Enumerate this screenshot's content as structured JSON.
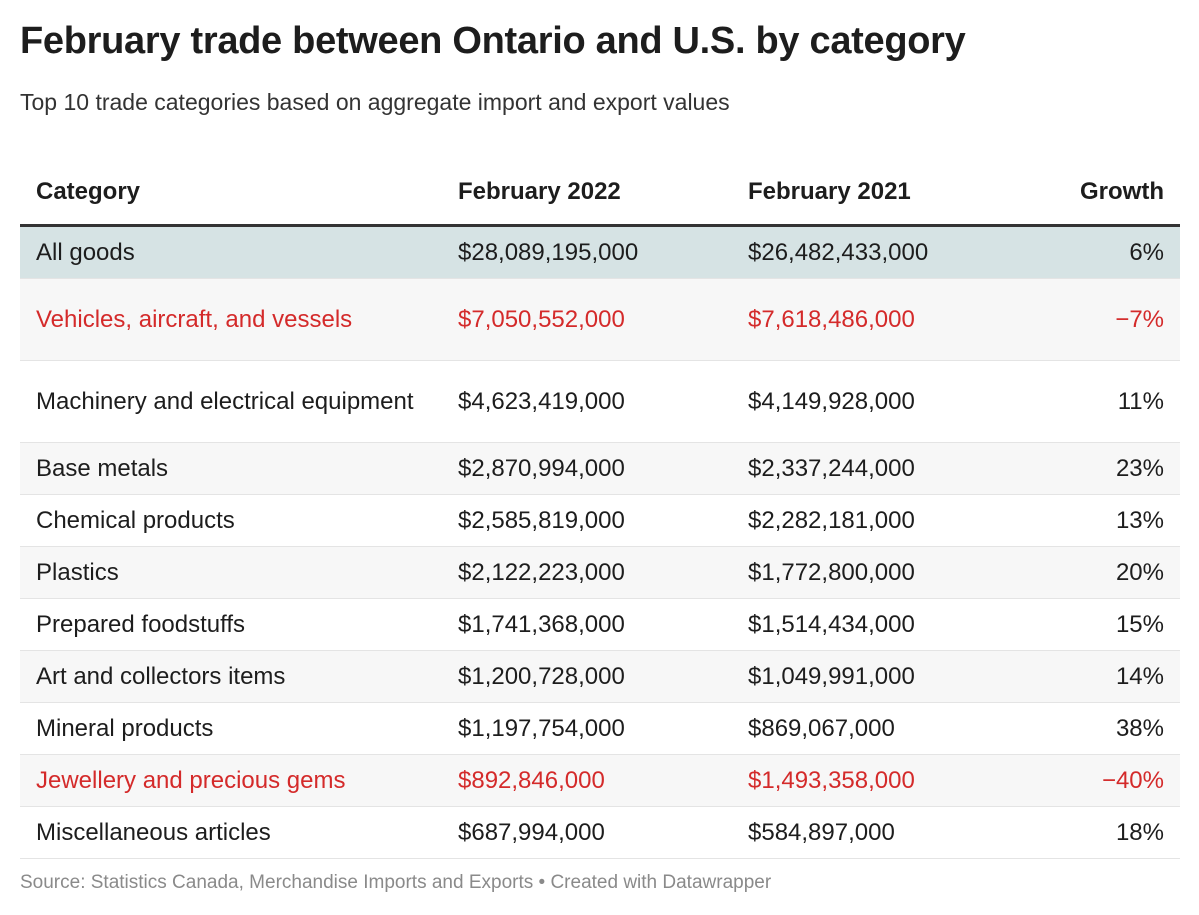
{
  "title": "February trade between Ontario and U.S. by category",
  "subtitle": "Top 10 trade categories based on aggregate import and export values",
  "source": "Source: Statistics Canada, Merchandise Imports and Exports • Created with Datawrapper",
  "colors": {
    "highlight_row": "#d6e3e4",
    "negative": "#d42a2a",
    "stripe": "#f7f7f7"
  },
  "chart_data": {
    "type": "table",
    "columns": [
      "Category",
      "February 2022",
      "February 2021",
      "Growth"
    ],
    "rows": [
      [
        "All goods",
        "$28,089,195,000",
        "$26,482,433,000",
        "6%"
      ],
      [
        "Vehicles, aircraft, and vessels",
        "$7,050,552,000",
        "$7,618,486,000",
        "−7%"
      ],
      [
        "Machinery and electrical equipment",
        "$4,623,419,000",
        "$4,149,928,000",
        "11%"
      ],
      [
        "Base metals",
        "$2,870,994,000",
        "$2,337,244,000",
        "23%"
      ],
      [
        "Chemical products",
        "$2,585,819,000",
        "$2,282,181,000",
        "13%"
      ],
      [
        "Plastics",
        "$2,122,223,000",
        "$1,772,800,000",
        "20%"
      ],
      [
        "Prepared foodstuffs",
        "$1,741,368,000",
        "$1,514,434,000",
        "15%"
      ],
      [
        "Art and collectors items",
        "$1,200,728,000",
        "$1,049,991,000",
        "14%"
      ],
      [
        "Mineral products",
        "$1,197,754,000",
        "$869,067,000",
        "38%"
      ],
      [
        "Jewellery and precious gems",
        "$892,846,000",
        "$1,493,358,000",
        "−40%"
      ],
      [
        "Miscellaneous articles",
        "$687,994,000",
        "$584,897,000",
        "18%"
      ]
    ]
  }
}
